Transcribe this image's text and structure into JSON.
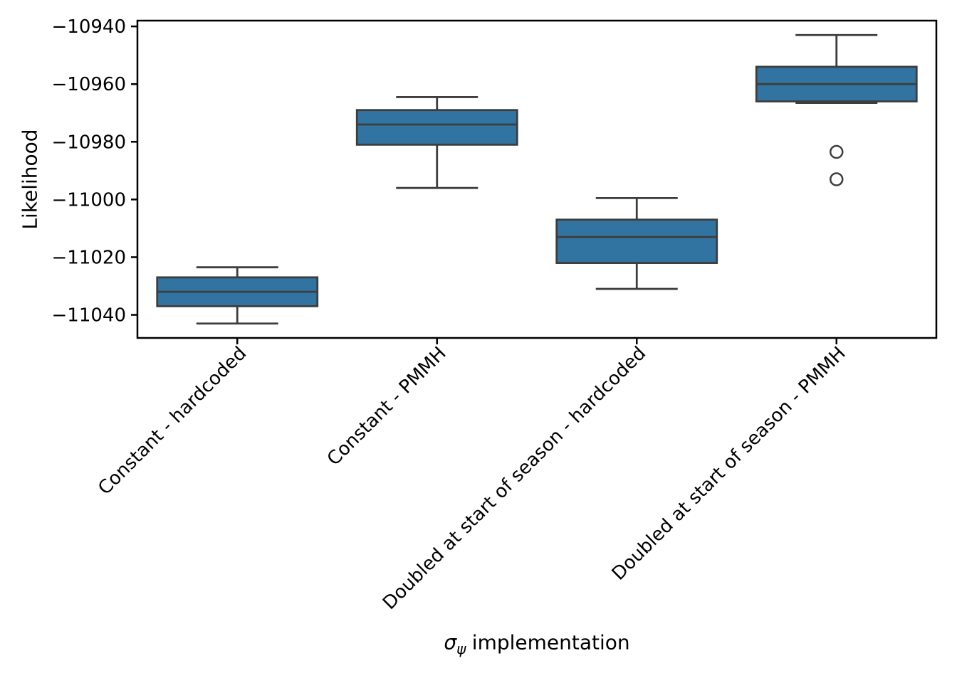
{
  "figure": {
    "ylabel": "Likelihood",
    "xlabel": {
      "symbol": "σ",
      "subscript": "ψ",
      "text": "implementation"
    }
  },
  "chart_data": {
    "type": "boxplot",
    "title": "",
    "xlabel": "σ_ψ implementation",
    "ylabel": "Likelihood",
    "categories": [
      "Constant - hardcoded",
      "Constant - PMMH",
      "Doubled at start of season - hardcoded",
      "Doubled at start of season - PMMH"
    ],
    "ylim": [
      -11048,
      -10938
    ],
    "yticks": [
      -10940,
      -10960,
      -10980,
      -11000,
      -11020,
      -11040
    ],
    "grid": false,
    "legend": false,
    "series": [
      {
        "label": "Constant - hardcoded",
        "whisker_low": -11043,
        "q1": -11037,
        "median": -11032,
        "q3": -11027,
        "whisker_high": -11023.5,
        "outliers": []
      },
      {
        "label": "Constant - PMMH",
        "whisker_low": -10996,
        "q1": -10981,
        "median": -10974,
        "q3": -10969,
        "whisker_high": -10964.5,
        "outliers": []
      },
      {
        "label": "Doubled at start of season - hardcoded",
        "whisker_low": -11031,
        "q1": -11022,
        "median": -11013,
        "q3": -11007,
        "whisker_high": -10999.5,
        "outliers": []
      },
      {
        "label": "Doubled at start of season - PMMH",
        "whisker_low": -10966.5,
        "q1": -10966,
        "median": -10960,
        "q3": -10954,
        "whisker_high": -10943,
        "outliers": [
          -10983.5,
          -10993
        ]
      }
    ],
    "colors": {
      "box_fill": "#3274a1",
      "box_edge": "#3d3d3d",
      "spine": "#000000"
    }
  }
}
